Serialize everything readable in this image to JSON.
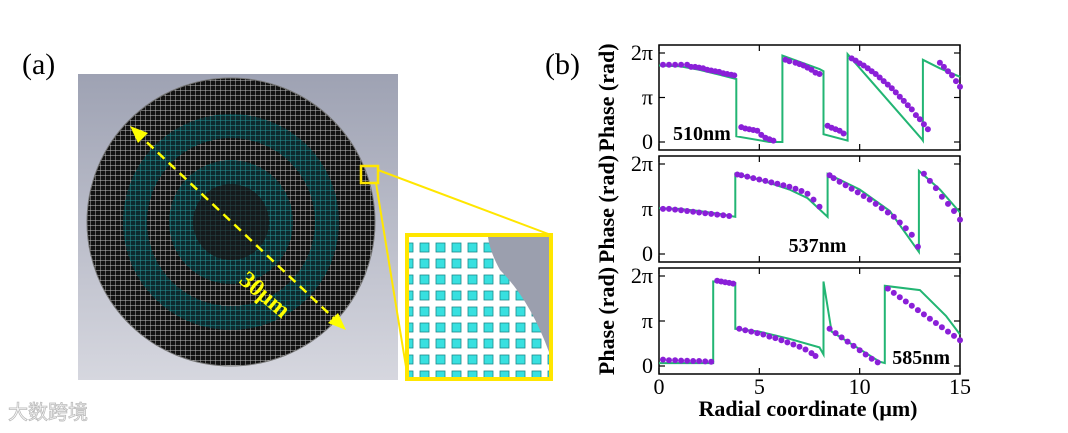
{
  "panel_a": {
    "label": "(a)",
    "scale_label": "30μm",
    "colors": {
      "background": "#c4c6d0",
      "lens": "#1a1a1a",
      "ring": "#2aa6a6",
      "highlight": "#ffe600",
      "pillar": "#38e0e0"
    }
  },
  "panel_b": {
    "label": "(b)"
  },
  "watermark": "大数跨境",
  "chart_data": {
    "type": "line",
    "xlabel": "Radial coordinate (μm)",
    "xlim": [
      0,
      15
    ],
    "xticks": [
      "0",
      "5",
      "10",
      "15"
    ],
    "ylim": [
      0,
      6.283
    ],
    "yticks": [
      "0",
      "π",
      "2π"
    ],
    "ylabel": "Phase (rad)",
    "colors": {
      "theory": "#22b573",
      "measured": "#8a1fd8"
    },
    "subplots": [
      {
        "wavelength": "510nm",
        "legend_pos": "bottom-left",
        "theory": {
          "x": [
            0,
            1,
            2,
            3,
            3.85,
            3.85,
            5.5,
            6.15,
            6.15,
            8,
            8.2,
            8.2,
            9.4,
            9.4,
            13.1,
            13.15,
            13.15,
            14,
            15
          ],
          "y": [
            5.4,
            5.35,
            5.1,
            4.75,
            4.45,
            0.4,
            0,
            0,
            6.1,
            5.15,
            5.0,
            0.55,
            0.1,
            6.2,
            0.2,
            0.1,
            5.8,
            5.2,
            4.6
          ]
        },
        "measured": {
          "x": [
            0.2,
            0.5,
            0.8,
            1.1,
            1.4,
            1.6,
            1.8,
            2.0,
            2.2,
            2.4,
            2.6,
            2.8,
            3.0,
            3.2,
            3.4,
            3.6,
            3.75,
            4.1,
            4.3,
            4.5,
            4.7,
            4.9,
            5.1,
            5.3,
            5.5,
            5.7,
            6.3,
            6.5,
            6.8,
            7.0,
            7.2,
            7.4,
            7.6,
            7.8,
            8.0,
            8.4,
            8.6,
            8.8,
            9.0,
            9.2,
            9.6,
            9.8,
            10.0,
            10.2,
            10.4,
            10.6,
            10.8,
            11.0,
            11.2,
            11.4,
            11.6,
            11.8,
            12.0,
            12.2,
            12.4,
            12.6,
            12.8,
            13.0,
            13.2,
            13.4,
            14.0,
            14.2,
            14.4,
            14.6,
            14.8,
            15.0
          ],
          "y": [
            5.45,
            5.45,
            5.45,
            5.45,
            5.45,
            5.3,
            5.3,
            5.25,
            5.2,
            5.1,
            5.05,
            5.0,
            4.95,
            4.85,
            4.8,
            4.75,
            4.7,
            1.05,
            0.95,
            0.9,
            0.85,
            0.8,
            0.5,
            0.3,
            0.2,
            0.1,
            5.8,
            5.7,
            5.6,
            5.5,
            5.4,
            5.25,
            5.1,
            4.9,
            4.8,
            1.15,
            1.0,
            0.9,
            0.8,
            0.6,
            5.9,
            5.75,
            5.55,
            5.4,
            5.2,
            5.0,
            4.8,
            4.55,
            4.3,
            4.05,
            3.8,
            3.5,
            3.2,
            2.9,
            2.6,
            2.3,
            1.9,
            1.6,
            1.25,
            0.9,
            5.6,
            5.3,
            5.0,
            4.7,
            4.3,
            3.9
          ]
        }
      },
      {
        "wavelength": "537nm",
        "legend_pos": "bottom-center",
        "theory": {
          "x": [
            0,
            1,
            2,
            3,
            3.8,
            3.8,
            5,
            6.5,
            7.4,
            8.4,
            8.4,
            10,
            11.5,
            12.95,
            12.95,
            14,
            15
          ],
          "y": [
            3.2,
            3.15,
            3.0,
            2.8,
            2.6,
            5.6,
            5.2,
            4.5,
            3.9,
            2.6,
            5.6,
            4.5,
            3.0,
            0.15,
            5.8,
            4.5,
            2.9
          ]
        },
        "measured": {
          "x": [
            0.2,
            0.5,
            0.8,
            1.1,
            1.4,
            1.7,
            2.0,
            2.3,
            2.6,
            2.9,
            3.2,
            3.5,
            3.9,
            4.1,
            4.4,
            4.7,
            5.0,
            5.3,
            5.6,
            5.9,
            6.2,
            6.5,
            6.8,
            7.1,
            7.4,
            7.7,
            8.0,
            8.5,
            8.7,
            9.0,
            9.3,
            9.6,
            9.9,
            10.2,
            10.5,
            10.8,
            11.1,
            11.4,
            11.7,
            12.0,
            12.3,
            12.6,
            12.9,
            13.2,
            13.5,
            13.8,
            14.1,
            14.4,
            14.7,
            15.0
          ],
          "y": [
            3.15,
            3.15,
            3.1,
            3.05,
            3.0,
            2.95,
            2.9,
            2.85,
            2.8,
            2.75,
            2.7,
            2.65,
            5.55,
            5.5,
            5.4,
            5.3,
            5.2,
            5.1,
            5.0,
            4.9,
            4.8,
            4.7,
            4.55,
            4.4,
            4.2,
            3.8,
            3.3,
            5.5,
            5.3,
            5.05,
            4.8,
            4.55,
            4.3,
            4.05,
            3.8,
            3.5,
            3.2,
            2.9,
            2.6,
            2.2,
            1.8,
            1.35,
            0.5,
            5.6,
            5.1,
            4.6,
            4.0,
            3.5,
            3.0,
            2.4
          ]
        }
      },
      {
        "wavelength": "585nm",
        "legend_pos": "bottom-right",
        "theory": {
          "x": [
            0,
            2.7,
            2.7,
            3.8,
            3.8,
            5.0,
            6.5,
            8.0,
            8.2,
            8.2,
            8.6,
            11.0,
            11.25,
            11.25,
            13.0,
            14.3,
            15
          ],
          "y": [
            0.2,
            0.2,
            5.9,
            5.8,
            2.6,
            2.4,
            1.9,
            1.3,
            0.8,
            5.9,
            2.4,
            0.3,
            0.2,
            5.6,
            5.3,
            3.5,
            2.2
          ]
        },
        "measured": {
          "x": [
            0.2,
            0.5,
            0.8,
            1.1,
            1.4,
            1.7,
            2.0,
            2.3,
            2.6,
            2.9,
            3.1,
            3.3,
            3.5,
            3.7,
            4.0,
            4.3,
            4.6,
            4.9,
            5.2,
            5.5,
            5.8,
            6.1,
            6.4,
            6.7,
            7.0,
            7.3,
            7.6,
            7.8,
            8.5,
            8.8,
            9.1,
            9.4,
            9.7,
            10.0,
            10.3,
            10.6,
            10.9,
            11.4,
            11.7,
            12.0,
            12.3,
            12.6,
            12.9,
            13.2,
            13.5,
            13.8,
            14.1,
            14.4,
            14.7,
            15.0
          ],
          "y": [
            0.45,
            0.4,
            0.4,
            0.38,
            0.36,
            0.35,
            0.35,
            0.32,
            0.3,
            5.95,
            5.9,
            5.85,
            5.8,
            5.75,
            2.6,
            2.5,
            2.4,
            2.3,
            2.2,
            2.05,
            1.95,
            1.8,
            1.65,
            1.5,
            1.35,
            1.15,
            0.9,
            0.7,
            2.6,
            2.3,
            2.0,
            1.7,
            1.4,
            1.1,
            0.8,
            0.5,
            0.25,
            5.4,
            5.1,
            4.8,
            4.5,
            4.2,
            3.9,
            3.6,
            3.3,
            3.0,
            2.7,
            2.4,
            2.1,
            1.8
          ]
        }
      }
    ]
  }
}
